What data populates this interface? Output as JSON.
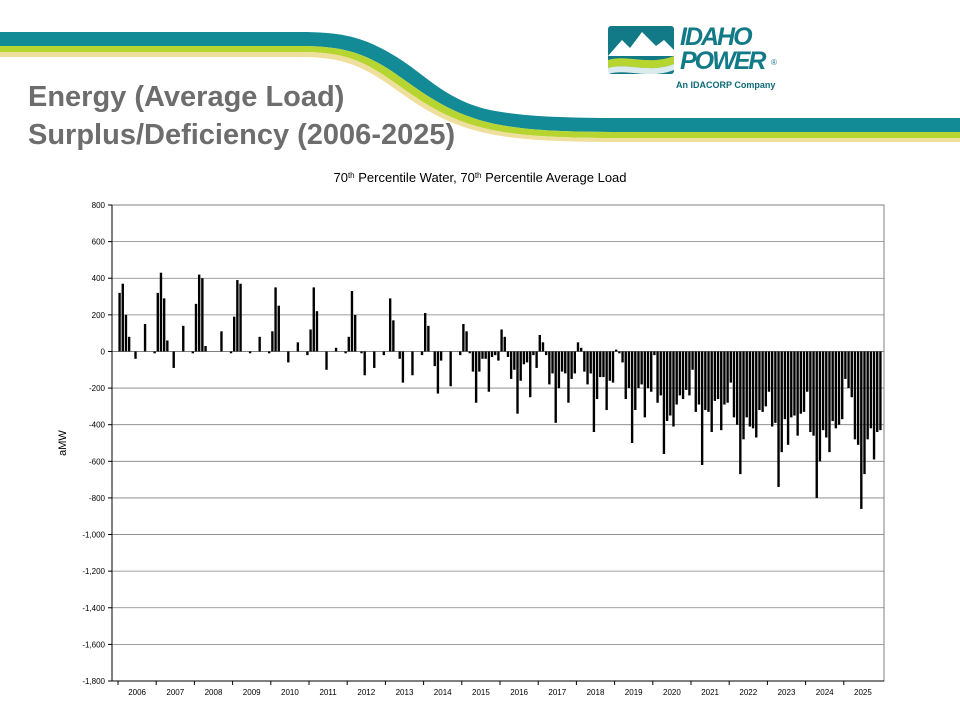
{
  "slide": {
    "title_line1": "Energy (Average Load)",
    "title_line2": "Surplus/Deficiency (2006-2025)"
  },
  "logo": {
    "line1": "IDAHO",
    "line2": "POWER",
    "registered": "®",
    "tagline": "An IDACORP Company"
  },
  "colors": {
    "teal": "#128b97",
    "lime": "#b7d531",
    "cream": "#eedf9c",
    "title_gray": "#6d6d6d",
    "bars": "#000000",
    "grid": "#808080"
  },
  "chart_data": {
    "type": "bar",
    "title": {
      "parts": [
        "70",
        "th",
        " Percentile Water, 70",
        "th",
        " Percentile Average Load"
      ]
    },
    "ylabel": "aMW",
    "ylim": [
      -1800,
      800
    ],
    "yticks": [
      800,
      600,
      400,
      200,
      0,
      -200,
      -400,
      -600,
      -800,
      -1000,
      -1200,
      -1400,
      -1600,
      -1800
    ],
    "ytick_labels": [
      "800",
      "600",
      "400",
      "200",
      "0",
      "-200",
      "-400",
      "-600",
      "-800",
      "-1,000",
      "-1,200",
      "-1,400",
      "-1,600",
      "-1,800"
    ],
    "categories": [
      "2006",
      "2007",
      "2008",
      "2009",
      "2010",
      "2011",
      "2012",
      "2013",
      "2014",
      "2015",
      "2016",
      "2017",
      "2018",
      "2019",
      "2020",
      "2021",
      "2022",
      "2023",
      "2024",
      "2025"
    ],
    "grid": true,
    "legend": "none",
    "series": [
      {
        "values": [
          [
            320,
            370,
            200,
            80,
            0,
            -40,
            0,
            0,
            150,
            0,
            0,
            -10
          ],
          [
            320,
            430,
            290,
            60,
            0,
            -90,
            0,
            0,
            140,
            0,
            0,
            -10
          ],
          [
            260,
            420,
            400,
            30,
            0,
            0,
            0,
            0,
            110,
            0,
            0,
            -10
          ],
          [
            190,
            390,
            370,
            0,
            0,
            -10,
            0,
            0,
            80,
            0,
            0,
            -10
          ],
          [
            110,
            350,
            250,
            0,
            0,
            -60,
            0,
            0,
            50,
            0,
            0,
            -20
          ],
          [
            120,
            350,
            220,
            0,
            0,
            -100,
            0,
            0,
            20,
            0,
            0,
            -10
          ],
          [
            80,
            330,
            200,
            0,
            -10,
            -130,
            0,
            0,
            -90,
            0,
            0,
            -20
          ],
          [
            0,
            290,
            170,
            0,
            -40,
            -170,
            0,
            0,
            -130,
            0,
            0,
            -20
          ],
          [
            210,
            140,
            0,
            -80,
            -230,
            -50,
            0,
            0,
            -190,
            0,
            0,
            -20
          ],
          [
            150,
            110,
            -10,
            -110,
            -280,
            -110,
            -40,
            -40,
            -220,
            -30,
            -20,
            -50
          ],
          [
            120,
            80,
            -30,
            -150,
            -100,
            -340,
            -160,
            -70,
            -60,
            -250,
            -20,
            -90
          ],
          [
            90,
            50,
            -20,
            -180,
            -120,
            -390,
            -200,
            -110,
            -120,
            -280,
            -150,
            -120
          ],
          [
            50,
            20,
            -110,
            -180,
            -120,
            -440,
            -260,
            -140,
            -140,
            -320,
            -160,
            -170
          ],
          [
            10,
            -10,
            -60,
            -260,
            -200,
            -500,
            -320,
            -200,
            -180,
            -360,
            -200,
            -220
          ],
          [
            -20,
            -280,
            -240,
            -560,
            -380,
            -350,
            -410,
            -290,
            -240,
            -260,
            -210,
            -240
          ],
          [
            -100,
            -330,
            -290,
            -620,
            -320,
            -330,
            -440,
            -270,
            -260,
            -430,
            -290,
            -280
          ],
          [
            -170,
            -360,
            -400,
            -670,
            -480,
            -360,
            -410,
            -420,
            -470,
            -320,
            -330,
            -300
          ],
          [
            -220,
            -410,
            -390,
            -740,
            -550,
            -370,
            -510,
            -360,
            -350,
            -460,
            -340,
            -330
          ],
          [
            -220,
            -440,
            -460,
            -800,
            -600,
            -430,
            -470,
            -550,
            -380,
            -420,
            -400,
            -370
          ],
          [
            -150,
            -200,
            -250,
            -480,
            -510,
            -860,
            -670,
            -480,
            -420,
            -590,
            -440,
            -430
          ]
        ]
      }
    ]
  }
}
